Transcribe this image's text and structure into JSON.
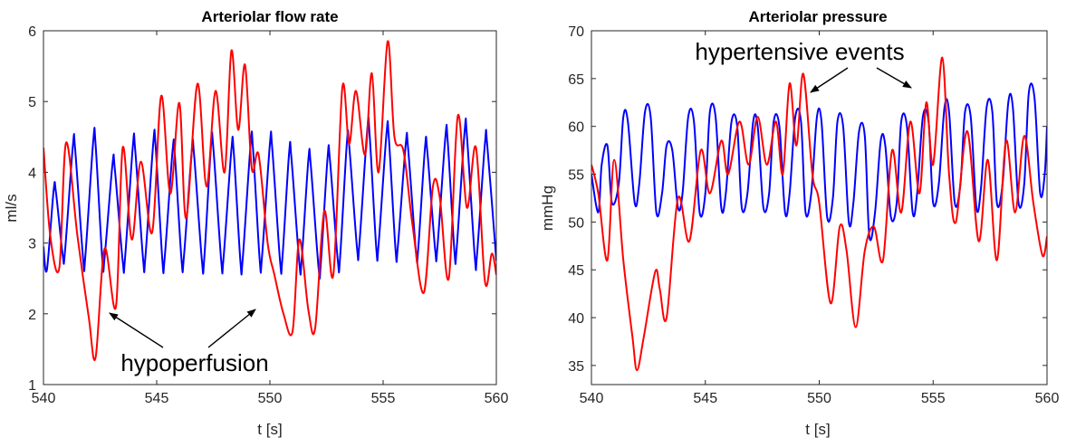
{
  "chart_data": [
    {
      "type": "line",
      "title": "Arteriolar flow rate",
      "xlabel": "t [s]",
      "ylabel": "ml/s",
      "xlim": [
        540,
        560
      ],
      "ylim": [
        1,
        6
      ],
      "xticks": [
        "540",
        "545",
        "550",
        "555",
        "560"
      ],
      "yticks": [
        "1",
        "2",
        "3",
        "4",
        "5",
        "6"
      ],
      "grid": false,
      "series": [
        {
          "color": "#0000ff",
          "x": [
            540,
            540.15,
            540.45,
            540.55,
            540.85,
            540.95,
            541.3,
            541.4,
            541.75,
            541.85,
            542.2,
            542.3,
            542.6,
            542.7,
            543.05,
            543.15,
            543.5,
            543.6,
            543.95,
            544.05,
            544.4,
            544.5,
            544.85,
            544.95,
            545.25,
            545.35,
            545.7,
            545.8,
            546.1,
            546.2,
            546.55,
            546.65,
            547.0,
            547.1,
            547.4,
            547.5,
            547.85,
            547.95,
            548.3,
            548.4,
            548.7,
            548.8,
            549.15,
            549.25,
            549.55,
            549.65,
            550.0,
            550.1,
            550.45,
            550.55,
            550.85,
            550.95,
            551.3,
            551.4,
            551.7,
            551.8,
            552.15,
            552.25,
            552.55,
            552.65,
            553.0,
            553.1,
            553.4,
            553.5,
            553.85,
            553.95,
            554.3,
            554.4,
            554.7,
            554.8,
            555.15,
            555.25,
            555.55,
            555.65,
            556.0,
            556.1,
            556.45,
            556.55,
            556.85,
            556.95,
            557.3,
            557.4,
            557.75,
            557.85,
            558.15,
            558.25,
            558.6,
            558.7,
            559.05,
            559.15,
            559.5,
            559.6,
            560
          ],
          "y": [
            2.95,
            2.62,
            3.75,
            3.72,
            2.83,
            2.88,
            4.38,
            4.32,
            2.78,
            2.82,
            4.45,
            4.4,
            2.76,
            2.8,
            4.12,
            4.05,
            2.74,
            2.78,
            4.38,
            4.32,
            2.77,
            2.8,
            4.42,
            4.38,
            2.76,
            2.78,
            4.3,
            4.25,
            2.75,
            2.8,
            4.3,
            4.25,
            2.74,
            2.78,
            4.38,
            4.35,
            2.75,
            2.78,
            4.32,
            4.3,
            2.73,
            2.78,
            4.4,
            4.35,
            2.76,
            2.8,
            4.4,
            4.35,
            2.74,
            2.78,
            4.28,
            4.2,
            2.72,
            2.75,
            4.18,
            4.12,
            2.65,
            2.72,
            4.22,
            4.18,
            2.75,
            2.8,
            4.42,
            4.38,
            2.92,
            2.98,
            4.6,
            4.55,
            2.92,
            2.98,
            4.55,
            4.5,
            2.9,
            2.95,
            4.4,
            4.35,
            2.88,
            2.92,
            4.35,
            4.3,
            2.9,
            2.95,
            4.5,
            4.45,
            2.88,
            2.93,
            4.58,
            4.52,
            2.8,
            2.85,
            4.42,
            4.38,
            2.75
          ]
        },
        {
          "color": "#ff0000",
          "x": [
            540,
            540.3,
            540.7,
            541.0,
            541.5,
            542.0,
            542.3,
            542.7,
            543.2,
            543.5,
            543.9,
            544.3,
            544.8,
            545.2,
            545.6,
            546.0,
            546.3,
            546.8,
            547.2,
            547.6,
            548.0,
            548.3,
            548.6,
            548.9,
            549.2,
            549.5,
            549.9,
            550.2,
            550.6,
            551.0,
            551.3,
            551.7,
            552.0,
            552.4,
            552.8,
            553.2,
            553.5,
            553.8,
            554.2,
            554.5,
            554.8,
            555.2,
            555.5,
            555.9,
            556.3,
            556.8,
            557.2,
            557.5,
            557.9,
            558.3,
            558.7,
            559.1,
            559.5,
            559.8,
            560
          ],
          "y": [
            4.35,
            3.1,
            2.65,
            4.42,
            3.1,
            1.95,
            1.38,
            2.92,
            2.1,
            4.35,
            3.05,
            4.15,
            3.15,
            5.08,
            3.7,
            4.98,
            3.35,
            5.25,
            3.8,
            5.15,
            4.0,
            5.72,
            4.6,
            5.52,
            4.05,
            4.25,
            3.0,
            2.55,
            2.0,
            1.75,
            3.05,
            2.05,
            1.8,
            3.45,
            2.55,
            5.2,
            4.4,
            5.15,
            4.25,
            5.4,
            4.0,
            5.85,
            4.5,
            4.3,
            3.25,
            2.3,
            3.8,
            3.65,
            2.5,
            4.8,
            3.5,
            4.35,
            2.45,
            2.85,
            2.55
          ]
        }
      ]
    },
    {
      "type": "line",
      "title": "Arteriolar pressure",
      "xlabel": "t [s]",
      "ylabel": "mmHg",
      "xlim": [
        540,
        560
      ],
      "ylim": [
        33,
        70
      ],
      "xticks": [
        "540",
        "545",
        "550",
        "555",
        "560"
      ],
      "yticks": [
        "35",
        "40",
        "45",
        "50",
        "55",
        "60",
        "65",
        "70"
      ],
      "grid": false,
      "series": [
        {
          "color": "#0000ff",
          "x": [
            540,
            540.3,
            540.45,
            540.7,
            540.9,
            541.2,
            541.4,
            541.6,
            541.9,
            542.1,
            542.35,
            542.6,
            542.85,
            543.1,
            543.3,
            543.55,
            543.8,
            544.0,
            544.25,
            544.5,
            544.75,
            545.0,
            545.2,
            545.45,
            545.7,
            545.9,
            546.15,
            546.4,
            546.6,
            546.85,
            547.1,
            547.3,
            547.55,
            547.8,
            548.0,
            548.25,
            548.5,
            548.7,
            548.95,
            549.2,
            549.4,
            549.65,
            549.9,
            550.1,
            550.35,
            550.6,
            550.8,
            551.05,
            551.3,
            551.5,
            551.75,
            552.0,
            552.2,
            552.45,
            552.7,
            552.9,
            553.15,
            553.4,
            553.6,
            553.85,
            554.1,
            554.3,
            554.55,
            554.8,
            555.0,
            555.25,
            555.5,
            555.7,
            555.95,
            556.2,
            556.4,
            556.65,
            556.9,
            557.1,
            557.35,
            557.6,
            557.8,
            558.05,
            558.3,
            558.5,
            558.75,
            559.0,
            559.2,
            559.45,
            559.7,
            559.9,
            560
          ],
          "y": [
            55,
            51,
            56,
            58,
            52,
            54,
            61,
            60.5,
            52,
            54,
            61.5,
            61,
            51,
            53,
            58,
            57.5,
            51.5,
            53,
            61,
            60.5,
            51,
            53,
            61.5,
            61,
            51.5,
            53,
            60.5,
            60,
            51.5,
            53,
            60.5,
            60,
            51.5,
            53,
            60.5,
            60,
            51,
            53,
            61,
            60.5,
            51,
            53,
            61,
            60.5,
            50.5,
            52.5,
            60.5,
            60,
            50,
            52,
            59.5,
            59,
            48.5,
            51,
            58.5,
            58,
            50.5,
            52,
            60.5,
            60,
            51,
            53,
            61,
            60.5,
            52,
            54,
            62,
            61.5,
            52,
            54,
            61.5,
            61,
            51.5,
            53.5,
            62,
            61.5,
            52,
            54,
            62.5,
            62,
            52,
            54,
            63.5,
            63,
            53,
            55,
            60
          ]
        },
        {
          "color": "#ff0000",
          "x": [
            540,
            540.3,
            540.7,
            541.0,
            541.4,
            541.8,
            542.0,
            542.3,
            542.8,
            543.0,
            543.3,
            543.8,
            544.3,
            544.8,
            545.2,
            545.7,
            546.0,
            546.5,
            546.9,
            547.3,
            547.7,
            548.1,
            548.4,
            548.7,
            549.0,
            549.3,
            549.7,
            550.0,
            550.5,
            550.9,
            551.2,
            551.6,
            552.0,
            552.4,
            552.8,
            553.2,
            553.6,
            554.0,
            554.4,
            554.7,
            555.0,
            555.4,
            555.7,
            556.0,
            556.5,
            557.0,
            557.4,
            557.8,
            558.2,
            558.6,
            559.0,
            559.4,
            559.8,
            560
          ],
          "y": [
            56,
            53,
            46,
            56.5,
            46,
            38,
            34.5,
            38,
            44.8,
            43,
            40,
            52.5,
            48,
            57.5,
            53,
            58.5,
            55,
            60.5,
            56,
            61,
            56,
            60.5,
            55,
            64.5,
            58,
            65.5,
            55,
            52,
            41.5,
            49.5,
            47,
            39,
            47,
            49.5,
            46,
            57.5,
            51,
            60.5,
            53,
            62.5,
            56,
            67.2,
            55,
            50,
            59.5,
            48,
            56.5,
            46,
            58.5,
            51,
            59,
            52,
            46.5,
            48.5
          ]
        }
      ]
    }
  ],
  "annotations": {
    "hypoperfusion": "hypoperfusion",
    "hypertensive": "hypertensive events"
  },
  "colors": {
    "series_a": "#0000ff",
    "series_b": "#ff0000",
    "axis": "#262626"
  }
}
